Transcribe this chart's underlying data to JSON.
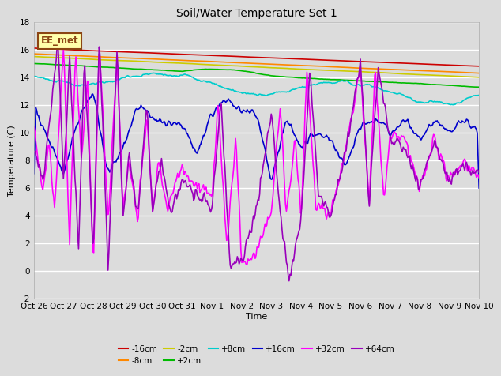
{
  "title": "Soil/Water Temperature Set 1",
  "xlabel": "Time",
  "ylabel": "Temperature (C)",
  "ylim": [
    -2,
    18
  ],
  "xlim": [
    0,
    15
  ],
  "bg_color": "#dcdcdc",
  "fig_bg_color": "#dcdcdc",
  "annotation_text": "EE_met",
  "annotation_bg": "#ffffaa",
  "annotation_border": "#8b4513",
  "xtick_labels": [
    "Oct 26",
    "Oct 27",
    "Oct 28",
    "Oct 29",
    "Oct 30",
    "Oct 31",
    "Nov 1",
    "Nov 2",
    "Nov 3",
    "Nov 4",
    "Nov 5",
    "Nov 6",
    "Nov 7",
    "Nov 8",
    "Nov 9",
    "Nov 10"
  ],
  "series": [
    {
      "label": "-16cm",
      "color": "#cc0000",
      "lw": 1.2
    },
    {
      "label": "-8cm",
      "color": "#ff8800",
      "lw": 1.2
    },
    {
      "label": "-2cm",
      "color": "#cccc00",
      "lw": 1.2
    },
    {
      "label": "+2cm",
      "color": "#00bb00",
      "lw": 1.2
    },
    {
      "label": "+8cm",
      "color": "#00cccc",
      "lw": 1.2
    },
    {
      "label": "+16cm",
      "color": "#0000cc",
      "lw": 1.2
    },
    {
      "label": "+32cm",
      "color": "#ff00ff",
      "lw": 1.2
    },
    {
      "label": "+64cm",
      "color": "#9900bb",
      "lw": 1.2
    }
  ]
}
